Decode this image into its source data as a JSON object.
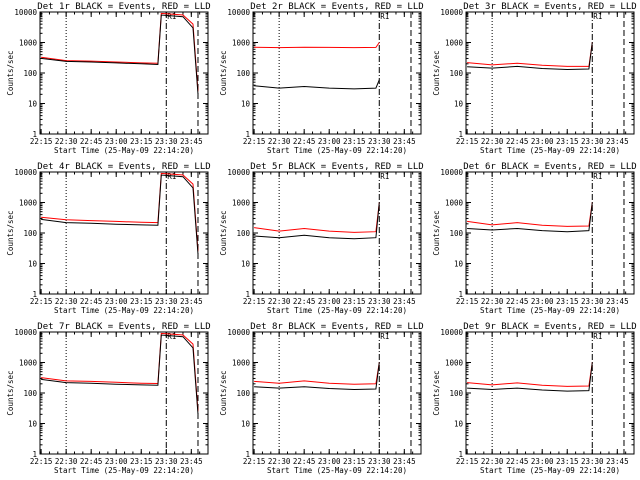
{
  "chart_data": [
    {
      "type": "line",
      "title": "Det 1r BLACK = Events, RED = LLD",
      "xlabel": "Start Time (25-May-09 22:14:20)",
      "ylabel": "Counts/sec",
      "series": [
        {
          "color": "#000000",
          "values": [
            {
              "x": "22:15",
              "y": 300
            },
            {
              "x": "22:30",
              "y": 240
            },
            {
              "x": "22:45",
              "y": 230
            },
            {
              "x": "23:00",
              "y": 215
            },
            {
              "x": "23:15",
              "y": 200
            },
            {
              "x": "23:25",
              "y": 190
            },
            {
              "x": "23:27",
              "y": 8000
            },
            {
              "x": "23:40",
              "y": 7000
            },
            {
              "x": "23:46",
              "y": 3000
            },
            {
              "x": "23:49",
              "y": 20
            }
          ]
        },
        {
          "color": "#ff0000",
          "values": [
            {
              "x": "22:15",
              "y": 330
            },
            {
              "x": "22:30",
              "y": 255
            },
            {
              "x": "22:45",
              "y": 245
            },
            {
              "x": "23:00",
              "y": 230
            },
            {
              "x": "23:15",
              "y": 215
            },
            {
              "x": "23:25",
              "y": 210
            },
            {
              "x": "23:27",
              "y": 9000
            },
            {
              "x": "23:40",
              "y": 8000
            },
            {
              "x": "23:46",
              "y": 4000
            },
            {
              "x": "23:49",
              "y": 25
            }
          ]
        }
      ]
    },
    {
      "type": "line",
      "title": "Det 2r BLACK = Events, RED = LLD",
      "xlabel": "Start Time (25-May-09 22:14:20)",
      "ylabel": "Counts/sec",
      "series": [
        {
          "color": "#000000",
          "values": [
            {
              "x": "22:15",
              "y": 38
            },
            {
              "x": "22:30",
              "y": 32
            },
            {
              "x": "22:45",
              "y": 36
            },
            {
              "x": "23:00",
              "y": 32
            },
            {
              "x": "23:15",
              "y": 30
            },
            {
              "x": "23:28",
              "y": 32
            },
            {
              "x": "23:30",
              "y": 60
            }
          ]
        },
        {
          "color": "#ff0000",
          "values": [
            {
              "x": "22:15",
              "y": 700
            },
            {
              "x": "22:30",
              "y": 680
            },
            {
              "x": "22:45",
              "y": 700
            },
            {
              "x": "23:00",
              "y": 690
            },
            {
              "x": "23:15",
              "y": 680
            },
            {
              "x": "23:28",
              "y": 690
            },
            {
              "x": "23:30",
              "y": 1000
            }
          ]
        }
      ]
    },
    {
      "type": "line",
      "title": "Det 3r BLACK = Events, RED = LLD",
      "xlabel": "Start Time (25-May-09 22:14:20)",
      "ylabel": "Counts/sec",
      "series": [
        {
          "color": "#000000",
          "values": [
            {
              "x": "22:15",
              "y": 160
            },
            {
              "x": "22:30",
              "y": 145
            },
            {
              "x": "22:45",
              "y": 165
            },
            {
              "x": "23:00",
              "y": 140
            },
            {
              "x": "23:15",
              "y": 130
            },
            {
              "x": "23:28",
              "y": 135
            },
            {
              "x": "23:30",
              "y": 1000
            }
          ]
        },
        {
          "color": "#ff0000",
          "values": [
            {
              "x": "22:15",
              "y": 220
            },
            {
              "x": "22:30",
              "y": 185
            },
            {
              "x": "22:45",
              "y": 210
            },
            {
              "x": "23:00",
              "y": 180
            },
            {
              "x": "23:15",
              "y": 165
            },
            {
              "x": "23:28",
              "y": 165
            },
            {
              "x": "23:30",
              "y": 1000
            }
          ]
        }
      ]
    },
    {
      "type": "line",
      "title": "Det 4r BLACK = Events, RED = LLD",
      "xlabel": "Start Time (25-May-09 22:14:20)",
      "ylabel": "Counts/sec",
      "series": [
        {
          "color": "#000000",
          "values": [
            {
              "x": "22:15",
              "y": 280
            },
            {
              "x": "22:30",
              "y": 220
            },
            {
              "x": "22:45",
              "y": 210
            },
            {
              "x": "23:00",
              "y": 195
            },
            {
              "x": "23:15",
              "y": 185
            },
            {
              "x": "23:25",
              "y": 180
            },
            {
              "x": "23:27",
              "y": 8000
            },
            {
              "x": "23:40",
              "y": 7000
            },
            {
              "x": "23:46",
              "y": 3000
            },
            {
              "x": "23:49",
              "y": 20
            }
          ]
        },
        {
          "color": "#ff0000",
          "values": [
            {
              "x": "22:15",
              "y": 330
            },
            {
              "x": "22:30",
              "y": 270
            },
            {
              "x": "22:45",
              "y": 255
            },
            {
              "x": "23:00",
              "y": 240
            },
            {
              "x": "23:15",
              "y": 225
            },
            {
              "x": "23:25",
              "y": 220
            },
            {
              "x": "23:27",
              "y": 9000
            },
            {
              "x": "23:40",
              "y": 8000
            },
            {
              "x": "23:46",
              "y": 4000
            },
            {
              "x": "23:49",
              "y": 25
            }
          ]
        }
      ]
    },
    {
      "type": "line",
      "title": "Det 5r BLACK = Events, RED = LLD",
      "xlabel": "Start Time (25-May-09 22:14:20)",
      "ylabel": "Counts/sec",
      "series": [
        {
          "color": "#000000",
          "values": [
            {
              "x": "22:15",
              "y": 80
            },
            {
              "x": "22:30",
              "y": 70
            },
            {
              "x": "22:45",
              "y": 85
            },
            {
              "x": "23:00",
              "y": 70
            },
            {
              "x": "23:15",
              "y": 65
            },
            {
              "x": "23:28",
              "y": 70
            },
            {
              "x": "23:30",
              "y": 1000
            }
          ]
        },
        {
          "color": "#ff0000",
          "values": [
            {
              "x": "22:15",
              "y": 150
            },
            {
              "x": "22:30",
              "y": 115
            },
            {
              "x": "22:45",
              "y": 140
            },
            {
              "x": "23:00",
              "y": 115
            },
            {
              "x": "23:15",
              "y": 105
            },
            {
              "x": "23:28",
              "y": 110
            },
            {
              "x": "23:30",
              "y": 1000
            }
          ]
        }
      ]
    },
    {
      "type": "line",
      "title": "Det 6r BLACK = Events, RED = LLD",
      "xlabel": "Start Time (25-May-09 22:14:20)",
      "ylabel": "Counts/sec",
      "series": [
        {
          "color": "#000000",
          "values": [
            {
              "x": "22:15",
              "y": 140
            },
            {
              "x": "22:30",
              "y": 125
            },
            {
              "x": "22:45",
              "y": 140
            },
            {
              "x": "23:00",
              "y": 120
            },
            {
              "x": "23:15",
              "y": 110
            },
            {
              "x": "23:28",
              "y": 120
            },
            {
              "x": "23:30",
              "y": 1000
            }
          ]
        },
        {
          "color": "#ff0000",
          "values": [
            {
              "x": "22:15",
              "y": 240
            },
            {
              "x": "22:30",
              "y": 185
            },
            {
              "x": "22:45",
              "y": 220
            },
            {
              "x": "23:00",
              "y": 180
            },
            {
              "x": "23:15",
              "y": 165
            },
            {
              "x": "23:28",
              "y": 170
            },
            {
              "x": "23:30",
              "y": 1000
            }
          ]
        }
      ]
    },
    {
      "type": "line",
      "title": "Det 7r BLACK = Events, RED = LLD",
      "xlabel": "Start Time (25-May-09 22:14:20)",
      "ylabel": "Counts/sec",
      "series": [
        {
          "color": "#000000",
          "values": [
            {
              "x": "22:15",
              "y": 280
            },
            {
              "x": "22:30",
              "y": 220
            },
            {
              "x": "22:45",
              "y": 210
            },
            {
              "x": "23:00",
              "y": 195
            },
            {
              "x": "23:15",
              "y": 185
            },
            {
              "x": "23:25",
              "y": 180
            },
            {
              "x": "23:27",
              "y": 8000
            },
            {
              "x": "23:40",
              "y": 7000
            },
            {
              "x": "23:46",
              "y": 3000
            },
            {
              "x": "23:49",
              "y": 20
            }
          ]
        },
        {
          "color": "#ff0000",
          "values": [
            {
              "x": "22:15",
              "y": 320
            },
            {
              "x": "22:30",
              "y": 250
            },
            {
              "x": "22:45",
              "y": 240
            },
            {
              "x": "23:00",
              "y": 225
            },
            {
              "x": "23:15",
              "y": 210
            },
            {
              "x": "23:25",
              "y": 205
            },
            {
              "x": "23:27",
              "y": 9000
            },
            {
              "x": "23:40",
              "y": 8000
            },
            {
              "x": "23:46",
              "y": 4000
            },
            {
              "x": "23:49",
              "y": 25
            }
          ]
        }
      ]
    },
    {
      "type": "line",
      "title": "Det 8r BLACK = Events, RED = LLD",
      "xlabel": "Start Time (25-May-09 22:14:20)",
      "ylabel": "Counts/sec",
      "series": [
        {
          "color": "#000000",
          "values": [
            {
              "x": "22:15",
              "y": 160
            },
            {
              "x": "22:30",
              "y": 145
            },
            {
              "x": "22:45",
              "y": 160
            },
            {
              "x": "23:00",
              "y": 140
            },
            {
              "x": "23:15",
              "y": 130
            },
            {
              "x": "23:28",
              "y": 135
            },
            {
              "x": "23:30",
              "y": 1000
            }
          ]
        },
        {
          "color": "#ff0000",
          "values": [
            {
              "x": "22:15",
              "y": 240
            },
            {
              "x": "22:30",
              "y": 210
            },
            {
              "x": "22:45",
              "y": 250
            },
            {
              "x": "23:00",
              "y": 210
            },
            {
              "x": "23:15",
              "y": 195
            },
            {
              "x": "23:28",
              "y": 200
            },
            {
              "x": "23:30",
              "y": 1000
            }
          ]
        }
      ]
    },
    {
      "type": "line",
      "title": "Det 9r BLACK = Events, RED = LLD",
      "xlabel": "Start Time (25-May-09 22:14:20)",
      "ylabel": "Counts/sec",
      "series": [
        {
          "color": "#000000",
          "values": [
            {
              "x": "22:15",
              "y": 145
            },
            {
              "x": "22:30",
              "y": 130
            },
            {
              "x": "22:45",
              "y": 145
            },
            {
              "x": "23:00",
              "y": 125
            },
            {
              "x": "23:15",
              "y": 115
            },
            {
              "x": "23:28",
              "y": 120
            },
            {
              "x": "23:30",
              "y": 1000
            }
          ]
        },
        {
          "color": "#ff0000",
          "values": [
            {
              "x": "22:15",
              "y": 220
            },
            {
              "x": "22:30",
              "y": 185
            },
            {
              "x": "22:45",
              "y": 215
            },
            {
              "x": "23:00",
              "y": 180
            },
            {
              "x": "23:15",
              "y": 165
            },
            {
              "x": "23:28",
              "y": 170
            },
            {
              "x": "23:30",
              "y": 1000
            }
          ]
        }
      ]
    }
  ],
  "axes": {
    "x_tick_labels": [
      "22:15",
      "22:30",
      "22:45",
      "23:00",
      "23:15",
      "23:30",
      "23:45"
    ],
    "x_range": [
      "22:14:20",
      "23:55:00"
    ],
    "y_tick_labels": [
      "1",
      "10",
      "100",
      "1000",
      "10000"
    ],
    "y_range": [
      1,
      10000
    ],
    "y_scale": "log",
    "vertical_marker_label": "R1",
    "colors": {
      "events": "#000000",
      "lld": "#ff0000"
    }
  }
}
